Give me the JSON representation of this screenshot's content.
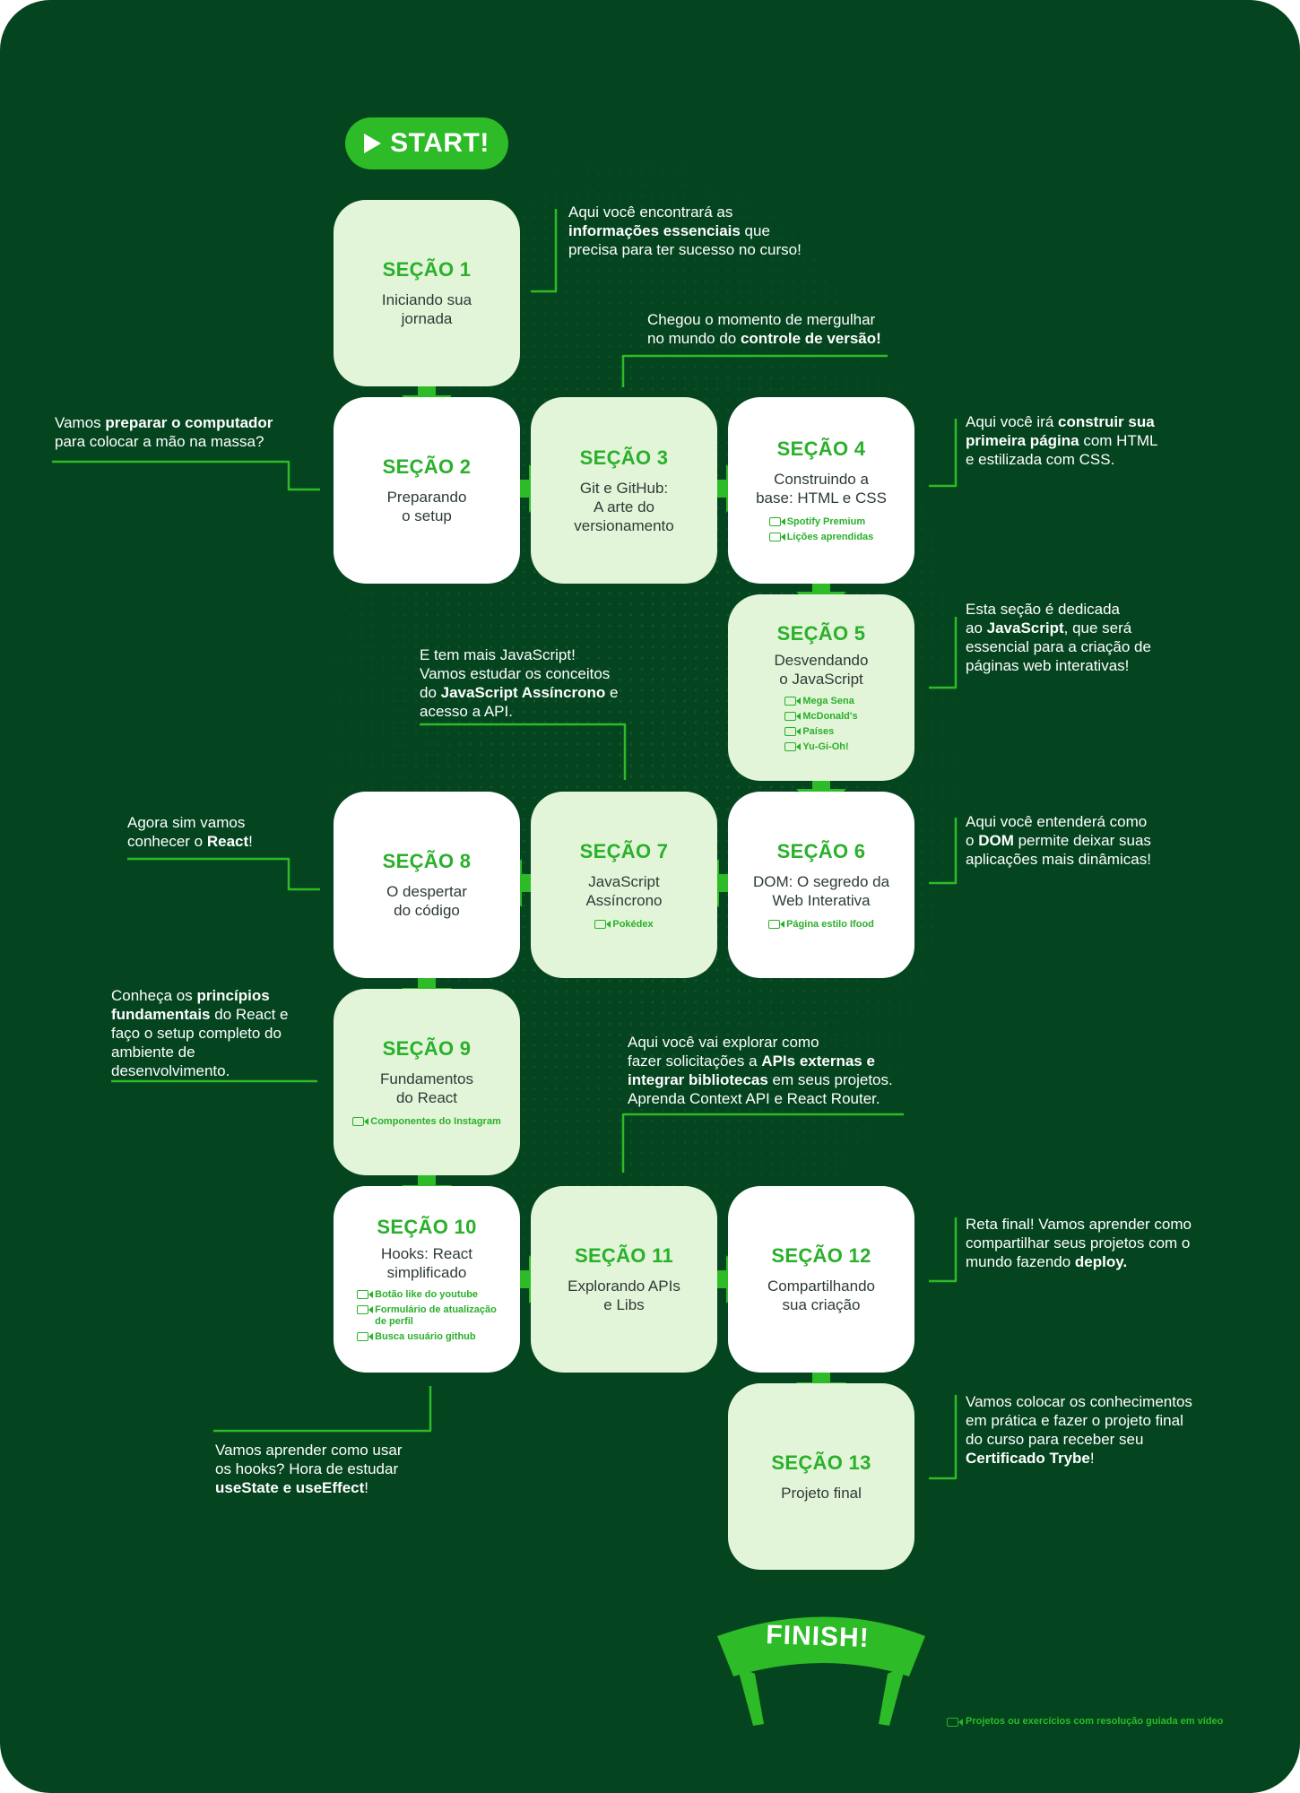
{
  "start_label": "START!",
  "finish_label": "FINISH!",
  "legend_text": "Projetos ou exercícios com resolução guiada em vídeo",
  "sections": [
    {
      "num": "SEÇÃO 1",
      "title": "Iniciando sua\njornada",
      "videos": []
    },
    {
      "num": "SEÇÃO 2",
      "title": "Preparando\no setup",
      "videos": []
    },
    {
      "num": "SEÇÃO 3",
      "title": "Git e GitHub:\nA arte do\nversionamento",
      "videos": []
    },
    {
      "num": "SEÇÃO 4",
      "title": "Construindo a\nbase: HTML e CSS",
      "videos": [
        "Spotify Premium",
        "Lições aprendidas"
      ]
    },
    {
      "num": "SEÇÃO 5",
      "title": "Desvendando\no JavaScript",
      "videos": [
        "Mega Sena",
        "McDonald's",
        "Países",
        "Yu-Gi-Oh!"
      ]
    },
    {
      "num": "SEÇÃO 6",
      "title": "DOM: O segredo da\nWeb Interativa",
      "videos": [
        "Página estilo Ifood"
      ]
    },
    {
      "num": "SEÇÃO 7",
      "title": "JavaScript\nAssíncrono",
      "videos": [
        "Pokédex"
      ]
    },
    {
      "num": "SEÇÃO 8",
      "title": "O despertar\ndo código",
      "videos": []
    },
    {
      "num": "SEÇÃO 9",
      "title": "Fundamentos\ndo React",
      "videos": [
        "Componentes do Instagram"
      ]
    },
    {
      "num": "SEÇÃO 10",
      "title": "Hooks: React\nsimplificado",
      "videos": [
        "Botão like do youtube",
        "Formulário de atualização\nde perfil",
        "Busca usuário github"
      ]
    },
    {
      "num": "SEÇÃO 11",
      "title": "Explorando APIs\ne Libs",
      "videos": []
    },
    {
      "num": "SEÇÃO 12",
      "title": "Compartilhando\nsua criação",
      "videos": []
    },
    {
      "num": "SEÇÃO 13",
      "title": "Projeto final",
      "videos": []
    }
  ],
  "notes": [
    {
      "id": "note-s1",
      "parts": [
        {
          "t": "Aqui você encontrará as\n"
        },
        {
          "t": "informações essenciais",
          "b": true
        },
        {
          "t": " que\nprecisa para ter sucesso no curso!"
        }
      ]
    },
    {
      "id": "note-s3",
      "parts": [
        {
          "t": "Chegou o momento de mergulhar\nno mundo do "
        },
        {
          "t": "controle de versão!",
          "b": true
        }
      ]
    },
    {
      "id": "note-s2",
      "parts": [
        {
          "t": "Vamos "
        },
        {
          "t": "preparar o computador",
          "b": true
        },
        {
          "t": "\npara colocar a mão na massa?"
        }
      ]
    },
    {
      "id": "note-s4",
      "parts": [
        {
          "t": "Aqui você irá "
        },
        {
          "t": "construir sua\nprimeira página",
          "b": true
        },
        {
          "t": " com HTML\ne estilizada com CSS."
        }
      ]
    },
    {
      "id": "note-s5",
      "parts": [
        {
          "t": "Esta seção é dedicada\nao "
        },
        {
          "t": "JavaScript",
          "b": true
        },
        {
          "t": ", que será\nessencial para a criação de\npáginas web interativas!"
        }
      ]
    },
    {
      "id": "note-s7",
      "parts": [
        {
          "t": "E tem mais JavaScript!\nVamos estudar os conceitos\ndo "
        },
        {
          "t": "JavaScript Assíncrono",
          "b": true
        },
        {
          "t": " e\nacesso a API."
        }
      ]
    },
    {
      "id": "note-s8",
      "parts": [
        {
          "t": "Agora sim vamos\nconhecer o "
        },
        {
          "t": "React",
          "b": true
        },
        {
          "t": "!"
        }
      ]
    },
    {
      "id": "note-s6",
      "parts": [
        {
          "t": "Aqui você entenderá como\no "
        },
        {
          "t": "DOM",
          "b": true
        },
        {
          "t": " permite deixar suas\naplicações mais dinâmicas!"
        }
      ]
    },
    {
      "id": "note-s9",
      "parts": [
        {
          "t": "Conheça os "
        },
        {
          "t": "princípios\nfundamentais",
          "b": true
        },
        {
          "t": " do React e\nfaço o setup completo do\nambiente de\ndesenvolvimento."
        }
      ]
    },
    {
      "id": "note-s11",
      "parts": [
        {
          "t": "Aqui você vai explorar como\nfazer solicitações a "
        },
        {
          "t": "APIs externas e\nintegrar bibliotecas",
          "b": true
        },
        {
          "t": " em seus projetos.\nAprenda Context API e React Router."
        }
      ]
    },
    {
      "id": "note-s12",
      "parts": [
        {
          "t": "Reta final! Vamos aprender como\ncompartilhar seus projetos com o\nmundo fazendo "
        },
        {
          "t": "deploy.",
          "b": true
        }
      ]
    },
    {
      "id": "note-s10",
      "parts": [
        {
          "t": "Vamos aprender como usar\nos hooks? Hora de estudar\n"
        },
        {
          "t": "useState e useEffect",
          "b": true
        },
        {
          "t": "!"
        }
      ]
    },
    {
      "id": "note-s13",
      "parts": [
        {
          "t": "Vamos colocar os conhecimentos\nem prática e fazer o projeto final\ndo curso para receber seu\n"
        },
        {
          "t": "Certificado Trybe",
          "b": true
        },
        {
          "t": "!"
        }
      ]
    }
  ],
  "colors": {
    "background": "#04441f",
    "accent": "#2dbb27",
    "card_white": "#ffffff",
    "card_light": "#e3f5d8"
  }
}
